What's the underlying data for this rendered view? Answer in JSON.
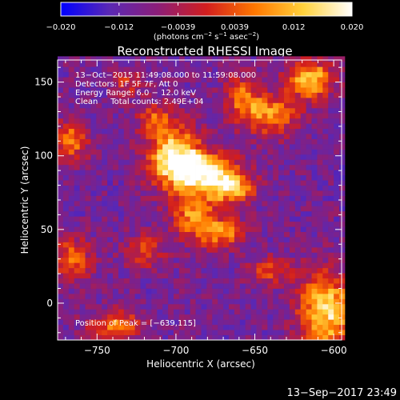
{
  "chart_data": {
    "type": "heatmap",
    "title": "Reconstructed RHESSI Image",
    "xlabel": "Heliocentric X (arcsec)",
    "ylabel": "Heliocentric Y (arcsec)",
    "xlim": [
      -775,
      -595
    ],
    "ylim": [
      -25,
      165
    ],
    "x_ticks": [
      -750,
      -700,
      -650,
      -600
    ],
    "y_ticks": [
      0,
      50,
      100,
      150
    ],
    "x_tick_labels": [
      "−750",
      "−700",
      "−650",
      "−600"
    ],
    "y_tick_labels": [
      "0",
      "50",
      "100",
      "150"
    ],
    "colorbar": {
      "min": -0.02,
      "max": 0.02,
      "ticks": [
        -0.02,
        -0.012,
        -0.0039,
        0.0039,
        0.012,
        0.02
      ],
      "tick_labels": [
        "−0.020",
        "−0.012",
        "−0.0039",
        "0.0039",
        "0.012",
        "0.020"
      ],
      "unit_label": "(photons cm",
      "unit_exp1": "−2",
      "unit_mid": " s",
      "unit_exp2": "−1",
      "unit_end": " asec",
      "unit_exp3": "−2",
      "unit_close": ")",
      "colormap": [
        "#0000ff",
        "#5a28b4",
        "#8c1e78",
        "#d21e1e",
        "#ff7800",
        "#ffd23c",
        "#ffffff"
      ]
    },
    "peak": {
      "x": -639,
      "y": 115
    },
    "sources": [
      {
        "x": -700,
        "y": 98,
        "sx": 12,
        "sy": 14,
        "amp": 1.0
      },
      {
        "x": -680,
        "y": 90,
        "sx": 14,
        "sy": 8,
        "amp": 0.85
      },
      {
        "x": -665,
        "y": 78,
        "sx": 10,
        "sy": 7,
        "amp": 0.8
      },
      {
        "x": -688,
        "y": 60,
        "sx": 10,
        "sy": 12,
        "amp": 0.6
      },
      {
        "x": -670,
        "y": 48,
        "sx": 10,
        "sy": 7,
        "amp": 0.55
      },
      {
        "x": -712,
        "y": 125,
        "sx": 8,
        "sy": 8,
        "amp": 0.45
      },
      {
        "x": -767,
        "y": 110,
        "sx": 8,
        "sy": 10,
        "amp": 0.55
      },
      {
        "x": -765,
        "y": 30,
        "sx": 8,
        "sy": 10,
        "amp": 0.55
      },
      {
        "x": -738,
        "y": -15,
        "sx": 12,
        "sy": 7,
        "amp": 0.55
      },
      {
        "x": -605,
        "y": -5,
        "sx": 12,
        "sy": 18,
        "amp": 0.9
      },
      {
        "x": -615,
        "y": 152,
        "sx": 10,
        "sy": 9,
        "amp": 0.8
      },
      {
        "x": -640,
        "y": 128,
        "sx": 12,
        "sy": 10,
        "amp": 0.6
      },
      {
        "x": -658,
        "y": 140,
        "sx": 8,
        "sy": 10,
        "amp": 0.5
      },
      {
        "x": -640,
        "y": 22,
        "sx": 10,
        "sy": 7,
        "amp": 0.4
      },
      {
        "x": -720,
        "y": 35,
        "sx": 9,
        "sy": 8,
        "amp": 0.4
      },
      {
        "x": -730,
        "y": 150,
        "sx": 8,
        "sy": 7,
        "amp": 0.3
      }
    ]
  },
  "annotations": {
    "line1": "13−Oct−2015 11:49:08.000 to 11:59:08.000",
    "line2": "Detectors: 1F 5F 7F, Att 0",
    "line3": "Energy Range: 6.0 − 12.0 keV",
    "line4": "Clean     Total counts: 2.49E+04",
    "peak_text": "Position of Peak = [−639,115]"
  },
  "footer": {
    "timestamp": "13−Sep−2017 23:49"
  }
}
